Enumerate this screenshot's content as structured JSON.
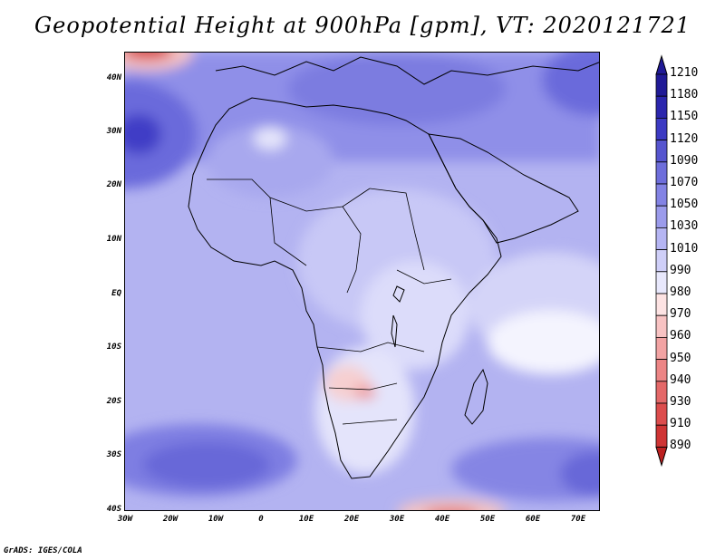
{
  "title": "Geopotential Height at 900hPa [gpm], VT: 2020121721",
  "credit": "GrADS: IGES/COLA",
  "map": {
    "lon_min": -30,
    "lon_max": 75,
    "lat_min": -40,
    "lat_max": 45,
    "lat_labels": [
      "40N",
      "30N",
      "20N",
      "10N",
      "EQ",
      "10S",
      "20S",
      "30S",
      "40S"
    ],
    "lon_labels": [
      "30W",
      "20W",
      "10W",
      "0",
      "10E",
      "20E",
      "30E",
      "40E",
      "50E",
      "60E",
      "70E"
    ]
  },
  "colorbar": {
    "levels": [
      "1210",
      "1180",
      "1150",
      "1120",
      "1090",
      "1070",
      "1050",
      "1030",
      "1010",
      "990",
      "980",
      "970",
      "960",
      "950",
      "940",
      "930",
      "910",
      "890"
    ],
    "colors": [
      "#201a96",
      "#2b26ad",
      "#3c3ac3",
      "#5655cf",
      "#6e6edb",
      "#8383e4",
      "#9b9beb",
      "#b5b5f3",
      "#cfcff8",
      "#e8e8fc",
      "#fde3e3",
      "#f8c3c3",
      "#f2a3a3",
      "#ec8585",
      "#e46868",
      "#dc4c4c",
      "#cf3434",
      "#bc2020"
    ]
  }
}
